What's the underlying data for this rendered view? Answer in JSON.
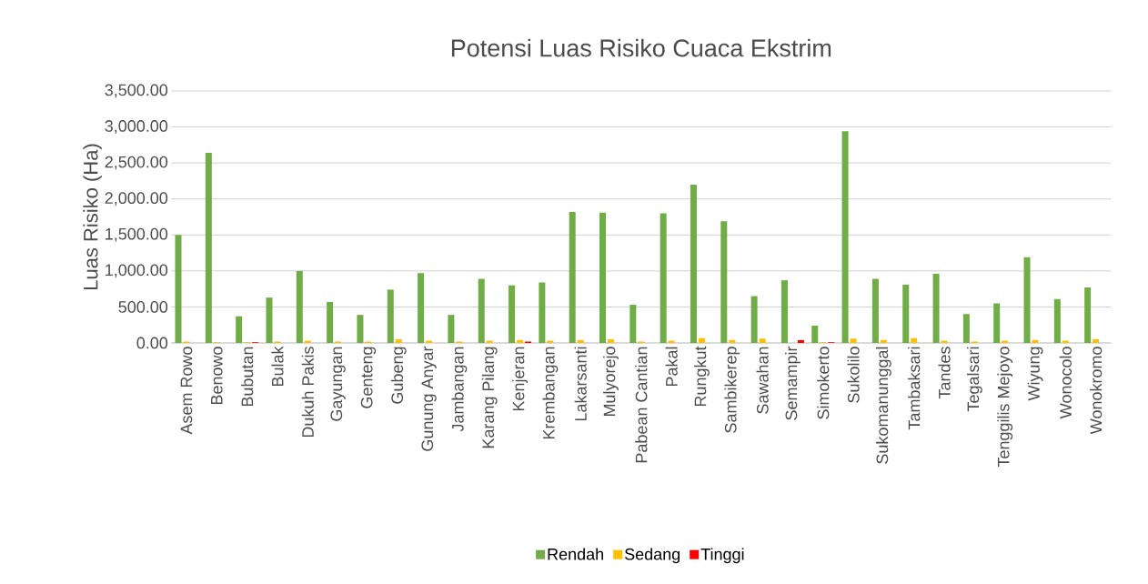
{
  "chart_data": {
    "type": "bar",
    "title": "Potensi Luas Risiko Cuaca Ekstrim",
    "ylabel": "Luas Risiko (Ha)",
    "categories": [
      "Asem Rowo",
      "Benowo",
      "Bubutan",
      "Bulak",
      "Dukuh Pakis",
      "Gayungan",
      "Genteng",
      "Gubeng",
      "Gunung Anyar",
      "Jambangan",
      "Karang Pilang",
      "Kenjeran",
      "Krembangan",
      "Lakarsanti",
      "Mulyorejo",
      "Pabean Cantian",
      "Pakal",
      "Rungkut",
      "Sambikerep",
      "Sawahan",
      "Semampir",
      "Simokerto",
      "Sukolilo",
      "Sukomanunggal",
      "Tambaksari",
      "Tandes",
      "Tegalsari",
      "Tenggilis Mejoyo",
      "Wiyung",
      "Wonocolo",
      "Wonokromo"
    ],
    "series": [
      {
        "name": "Rendah",
        "color": "#70ad47",
        "values": [
          1500,
          2640,
          370,
          630,
          1000,
          570,
          390,
          740,
          970,
          390,
          890,
          800,
          840,
          1820,
          1810,
          530,
          1800,
          2200,
          1690,
          650,
          870,
          240,
          2940,
          890,
          810,
          960,
          400,
          550,
          1190,
          610,
          770
        ]
      },
      {
        "name": "Sedang",
        "color": "#ffc000",
        "values": [
          20,
          10,
          10,
          20,
          30,
          20,
          20,
          50,
          30,
          20,
          30,
          40,
          30,
          40,
          50,
          20,
          30,
          70,
          40,
          60,
          0,
          10,
          60,
          40,
          70,
          30,
          20,
          30,
          40,
          30,
          50
        ]
      },
      {
        "name": "Tinggi",
        "color": "#ff0000",
        "values": [
          0,
          0,
          10,
          0,
          0,
          0,
          0,
          0,
          0,
          0,
          0,
          20,
          0,
          0,
          0,
          0,
          0,
          0,
          0,
          0,
          40,
          10,
          0,
          0,
          0,
          0,
          0,
          0,
          0,
          0,
          0
        ]
      }
    ],
    "ylim": [
      0,
      3500
    ],
    "yticks": [
      {
        "value": 0,
        "label": "0.00"
      },
      {
        "value": 500,
        "label": "500.00"
      },
      {
        "value": 1000,
        "label": "1,000.00"
      },
      {
        "value": 1500,
        "label": "1,500.00"
      },
      {
        "value": 2000,
        "label": "2,000.00"
      },
      {
        "value": 2500,
        "label": "2,500.00"
      },
      {
        "value": 3000,
        "label": "3,000.00"
      },
      {
        "value": 3500,
        "label": "3,500.00"
      }
    ],
    "grid": "y",
    "legend": "bottom"
  }
}
